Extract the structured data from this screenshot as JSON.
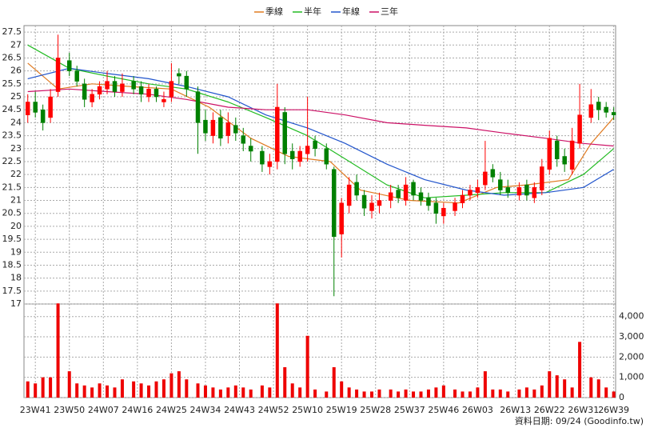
{
  "chart_data": {
    "type": "candlestick",
    "x": [
      -2,
      0,
      2,
      4,
      6,
      9,
      11,
      13,
      15,
      17,
      19,
      21,
      23,
      26,
      28,
      30,
      32,
      34,
      36,
      38,
      40,
      43,
      45,
      47,
      49,
      51,
      53,
      55,
      57,
      60,
      62,
      64,
      66,
      68,
      70,
      72,
      74,
      77,
      79,
      81,
      83,
      85,
      87,
      89,
      91,
      94,
      96,
      98,
      100,
      102,
      104,
      106,
      108,
      111,
      113,
      115,
      117,
      119,
      121,
      123,
      125,
      128,
      130,
      132,
      134,
      136,
      138,
      140,
      142,
      144,
      147,
      149,
      151,
      153
    ],
    "open": [
      24.3,
      24.8,
      24.5,
      24.2,
      25.2,
      26.4,
      26.0,
      25.5,
      24.8,
      25.1,
      25.3,
      25.6,
      25.2,
      25.6,
      25.4,
      25.0,
      25.3,
      24.8,
      25.0,
      25.9,
      25.8,
      25.2,
      24.1,
      23.5,
      24.2,
      23.5,
      23.9,
      23.5,
      23.1,
      22.9,
      22.3,
      22.5,
      24.4,
      22.9,
      22.5,
      22.8,
      23.3,
      23.0,
      22.2,
      19.7,
      20.8,
      21.7,
      21.2,
      20.6,
      20.8,
      21.0,
      21.4,
      21.0,
      21.7,
      21.3,
      21.1,
      20.9,
      20.4,
      20.6,
      20.9,
      21.2,
      21.3,
      21.6,
      22.2,
      21.8,
      21.5,
      21.2,
      21.6,
      21.1,
      21.4,
      22.2,
      23.3,
      22.7,
      22.2,
      23.2,
      24.2,
      24.8,
      24.6,
      24.4
    ],
    "high": [
      25.1,
      25.2,
      24.7,
      25.3,
      27.4,
      26.7,
      26.2,
      25.7,
      25.3,
      25.6,
      26.0,
      25.8,
      25.9,
      25.8,
      25.6,
      25.5,
      25.4,
      25.2,
      26.3,
      26.1,
      26.0,
      25.4,
      24.5,
      24.4,
      24.5,
      24.4,
      24.2,
      23.8,
      23.4,
      23.1,
      22.8,
      25.5,
      24.6,
      23.2,
      23.1,
      25.0,
      23.5,
      23.2,
      22.3,
      21.1,
      21.9,
      22.0,
      21.4,
      21.2,
      21.3,
      21.6,
      21.6,
      21.9,
      21.8,
      21.5,
      21.3,
      21.1,
      20.9,
      21.1,
      21.4,
      21.6,
      21.8,
      23.3,
      22.4,
      22.1,
      21.8,
      21.7,
      21.8,
      21.7,
      22.6,
      23.7,
      23.5,
      23.0,
      23.8,
      25.5,
      25.3,
      25.0,
      24.8,
      24.6
    ],
    "low": [
      24.0,
      24.2,
      23.7,
      24.0,
      25.0,
      25.8,
      25.4,
      24.6,
      24.6,
      24.9,
      25.1,
      25.0,
      25.0,
      25.1,
      24.8,
      24.8,
      24.8,
      24.6,
      24.8,
      25.5,
      25.0,
      22.8,
      23.3,
      23.2,
      23.1,
      23.2,
      23.3,
      22.9,
      22.5,
      22.1,
      22.0,
      22.2,
      22.4,
      22.2,
      22.3,
      22.5,
      22.7,
      22.2,
      17.3,
      18.8,
      20.5,
      21.0,
      20.4,
      20.3,
      20.5,
      20.7,
      20.9,
      20.8,
      21.0,
      20.8,
      20.6,
      20.1,
      20.1,
      20.4,
      20.7,
      21.0,
      21.1,
      21.4,
      21.7,
      21.2,
      21.1,
      21.0,
      21.0,
      20.9,
      21.2,
      22.0,
      22.3,
      22.1,
      22.0,
      23.0,
      24.0,
      24.1,
      24.2,
      24.1
    ],
    "close": [
      24.8,
      24.4,
      24.0,
      25.0,
      26.5,
      26.0,
      25.6,
      24.9,
      25.1,
      25.4,
      25.6,
      25.2,
      25.5,
      25.3,
      25.1,
      25.3,
      25.0,
      24.9,
      25.6,
      25.8,
      25.3,
      24.0,
      23.6,
      24.1,
      23.4,
      24.0,
      23.6,
      23.2,
      22.9,
      22.4,
      22.5,
      24.6,
      22.8,
      22.6,
      22.9,
      23.1,
      23.0,
      22.4,
      19.6,
      20.9,
      21.6,
      21.2,
      20.7,
      20.9,
      21.0,
      21.3,
      21.1,
      21.6,
      21.2,
      21.0,
      20.8,
      20.5,
      20.7,
      20.9,
      21.2,
      21.4,
      21.5,
      22.1,
      21.9,
      21.4,
      21.3,
      21.5,
      21.2,
      21.5,
      22.3,
      23.4,
      22.6,
      22.4,
      23.3,
      24.3,
      24.7,
      24.5,
      24.4,
      24.3
    ],
    "up_color": "#ff0000",
    "down_color": "#008000",
    "series": [
      {
        "name": "季線",
        "color": "#e07a20",
        "x": [
          -2,
          6,
          15,
          25,
          36,
          46,
          57,
          67,
          78,
          86,
          99,
          112,
          122,
          130,
          141,
          147,
          153
        ],
        "values": [
          26.3,
          25.3,
          25.5,
          25.4,
          25.3,
          24.6,
          23.4,
          22.7,
          22.5,
          21.4,
          21.0,
          20.9,
          21.5,
          21.6,
          21.8,
          23.2,
          24.2
        ]
      },
      {
        "name": "半年",
        "color": "#22bb22",
        "x": [
          -2,
          9,
          19,
          30,
          40,
          51,
          61,
          72,
          82,
          93,
          103,
          114,
          124,
          135,
          145,
          153
        ],
        "values": [
          27.0,
          26.1,
          25.8,
          25.5,
          25.3,
          24.8,
          24.2,
          23.5,
          22.6,
          21.6,
          21.1,
          21.2,
          21.3,
          21.3,
          22.0,
          23.0
        ]
      },
      {
        "name": "年線",
        "color": "#2255cc",
        "x": [
          -2,
          9,
          19,
          30,
          40,
          51,
          61,
          72,
          82,
          93,
          103,
          114,
          124,
          135,
          145,
          153
        ],
        "values": [
          25.7,
          26.1,
          25.9,
          25.7,
          25.4,
          25.0,
          24.3,
          23.8,
          23.2,
          22.4,
          21.8,
          21.4,
          21.2,
          21.3,
          21.5,
          22.2
        ]
      },
      {
        "name": "三年",
        "color": "#cc1166",
        "x": [
          -2,
          9,
          19,
          30,
          40,
          51,
          61,
          72,
          82,
          93,
          103,
          114,
          124,
          135,
          145,
          153
        ],
        "values": [
          25.2,
          25.3,
          25.2,
          25.1,
          24.9,
          24.6,
          24.5,
          24.5,
          24.3,
          24.0,
          23.9,
          23.8,
          23.6,
          23.4,
          23.2,
          23.1
        ]
      }
    ],
    "xlim": [
      -3,
      153.5
    ],
    "xticks": [
      {
        "value": 0,
        "label": "23W41"
      },
      {
        "value": 9,
        "label": "23W50"
      },
      {
        "value": 18,
        "label": "24W07"
      },
      {
        "value": 27,
        "label": "24W16"
      },
      {
        "value": 36,
        "label": "24W25"
      },
      {
        "value": 45,
        "label": "24W34"
      },
      {
        "value": 54,
        "label": "24W43"
      },
      {
        "value": 63,
        "label": "24W52"
      },
      {
        "value": 72,
        "label": "25W10"
      },
      {
        "value": 81,
        "label": "25W19"
      },
      {
        "value": 90,
        "label": "25W28"
      },
      {
        "value": 99,
        "label": "25W37"
      },
      {
        "value": 108,
        "label": "25W46"
      },
      {
        "value": 117,
        "label": "26W03"
      },
      {
        "value": 127,
        "label": "26W13"
      },
      {
        "value": 136,
        "label": "26W22"
      },
      {
        "value": 145,
        "label": "26W31"
      },
      {
        "value": 153,
        "label": "26W39"
      }
    ],
    "ylim": [
      17,
      27.75
    ],
    "yticks": [
      17,
      17.5,
      18,
      18.5,
      19,
      19.5,
      20,
      20.5,
      21,
      21.5,
      22,
      22.5,
      23,
      23.5,
      24,
      24.5,
      25,
      25.5,
      26,
      26.5,
      27,
      27.5
    ],
    "volume": {
      "color": "#ee0000",
      "values": [
        800,
        700,
        1000,
        1000,
        4650,
        1300,
        700,
        600,
        500,
        700,
        600,
        500,
        900,
        800,
        700,
        600,
        800,
        900,
        1200,
        1300,
        900,
        700,
        600,
        500,
        400,
        500,
        600,
        500,
        400,
        600,
        500,
        4650,
        1500,
        700,
        500,
        3050,
        400,
        300,
        1500,
        800,
        500,
        400,
        300,
        300,
        400,
        400,
        300,
        400,
        300,
        300,
        400,
        500,
        600,
        400,
        300,
        300,
        500,
        1300,
        400,
        400,
        300,
        400,
        500,
        400,
        600,
        1300,
        1100,
        900,
        500,
        2750,
        1000,
        900,
        500,
        300
      ],
      "ylim": [
        0,
        4620
      ],
      "yticks": [
        0,
        {
          "value": 1000,
          "label": "1,000"
        },
        {
          "value": 2000,
          "label": "2,000"
        },
        {
          "value": 3000,
          "label": "3,000"
        },
        {
          "value": 4000,
          "label": "4,000"
        }
      ]
    },
    "grid": true,
    "source": "資料日期: 09/24  (Goodinfo.tw)"
  }
}
